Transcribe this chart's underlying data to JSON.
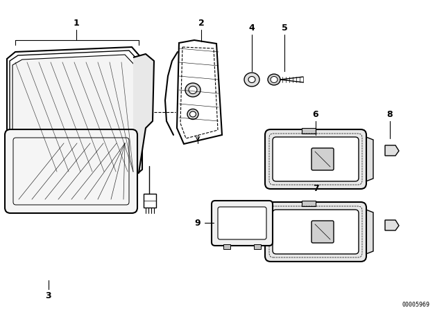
{
  "background_color": "#ffffff",
  "line_color": "#000000",
  "diagram_id": "00005969",
  "figsize": [
    6.4,
    4.48
  ],
  "dpi": 100
}
